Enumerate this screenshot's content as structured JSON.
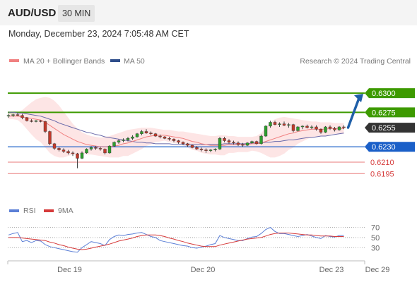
{
  "header": {
    "pair": "AUD/USD",
    "timeframe": "30 MIN"
  },
  "timestamp": "Monday, December 23, 2024 7:05:48 AM CET",
  "legend": {
    "bands_label": "MA 20 + Bollinger Bands",
    "ma50_label": "MA 50",
    "credit": "Research © 2024 Trading Central",
    "rsi_label": "RSI",
    "rsi_ma_label": "9MA"
  },
  "colors": {
    "up_candle": "#2e9e2e",
    "down_candle": "#c0392b",
    "ma20": "#f08080",
    "band_fill": "#fde0e0",
    "ma50": "#6a6aaa",
    "resistance": "#3d9a00",
    "support": "#1a5fc8",
    "pivot": "#e87a7a",
    "last": "#333333",
    "arrow": "#1f5fa8",
    "rsi": "#5b7fd6",
    "rsi_ma": "#d63a3a"
  },
  "chart_data": [
    {
      "type": "candlestick",
      "title": "AUD/USD",
      "timeframe": "30 MIN",
      "ylim": [
        0.6175,
        0.6325
      ],
      "date_ticks": [
        {
          "label": "Dec 19",
          "index": 13
        },
        {
          "label": "Dec 20",
          "index": 42
        },
        {
          "label": "Dec 23",
          "index": 70
        },
        {
          "label": "Dec 29",
          "index": 80
        }
      ],
      "ohlc": [
        [
          0.627,
          0.6273,
          0.6268,
          0.6271
        ],
        [
          0.6271,
          0.6273,
          0.6269,
          0.6272
        ],
        [
          0.6272,
          0.6274,
          0.627,
          0.6271
        ],
        [
          0.6271,
          0.6273,
          0.6266,
          0.6268
        ],
        [
          0.6268,
          0.6269,
          0.6263,
          0.6264
        ],
        [
          0.6264,
          0.6266,
          0.6262,
          0.6263
        ],
        [
          0.6263,
          0.6265,
          0.6262,
          0.6264
        ],
        [
          0.6264,
          0.6265,
          0.6262,
          0.6263
        ],
        [
          0.6263,
          0.6264,
          0.6248,
          0.625
        ],
        [
          0.625,
          0.6251,
          0.6232,
          0.6234
        ],
        [
          0.6234,
          0.6235,
          0.6226,
          0.6228
        ],
        [
          0.6228,
          0.623,
          0.6224,
          0.6226
        ],
        [
          0.6226,
          0.6228,
          0.6222,
          0.6224
        ],
        [
          0.6224,
          0.6226,
          0.622,
          0.6222
        ],
        [
          0.6222,
          0.6224,
          0.6218,
          0.6221
        ],
        [
          0.6221,
          0.6222,
          0.6202,
          0.6215
        ],
        [
          0.6215,
          0.6224,
          0.6214,
          0.6222
        ],
        [
          0.6222,
          0.6228,
          0.6221,
          0.6227
        ],
        [
          0.6227,
          0.6231,
          0.6225,
          0.6229
        ],
        [
          0.6229,
          0.6231,
          0.6226,
          0.6228
        ],
        [
          0.6228,
          0.623,
          0.6225,
          0.6227
        ],
        [
          0.6227,
          0.6228,
          0.622,
          0.6222
        ],
        [
          0.6222,
          0.6232,
          0.6221,
          0.6231
        ],
        [
          0.6231,
          0.6237,
          0.623,
          0.6236
        ],
        [
          0.6236,
          0.624,
          0.6234,
          0.6238
        ],
        [
          0.6238,
          0.6241,
          0.6236,
          0.6239
        ],
        [
          0.6239,
          0.6243,
          0.6237,
          0.6241
        ],
        [
          0.6241,
          0.6245,
          0.6239,
          0.6243
        ],
        [
          0.6243,
          0.6248,
          0.6242,
          0.6247
        ],
        [
          0.6247,
          0.6252,
          0.6245,
          0.625
        ],
        [
          0.625,
          0.6253,
          0.6247,
          0.6248
        ],
        [
          0.6248,
          0.625,
          0.6245,
          0.6247
        ],
        [
          0.6247,
          0.6248,
          0.6243,
          0.6244
        ],
        [
          0.6244,
          0.6246,
          0.6241,
          0.6243
        ],
        [
          0.6243,
          0.6244,
          0.624,
          0.6241
        ],
        [
          0.6241,
          0.6243,
          0.6238,
          0.624
        ],
        [
          0.624,
          0.6241,
          0.6236,
          0.6238
        ],
        [
          0.6238,
          0.6239,
          0.6234,
          0.6236
        ],
        [
          0.6236,
          0.6237,
          0.6232,
          0.6234
        ],
        [
          0.6234,
          0.6235,
          0.623,
          0.6232
        ],
        [
          0.6232,
          0.6233,
          0.6228,
          0.6229
        ],
        [
          0.6229,
          0.6231,
          0.6226,
          0.6227
        ],
        [
          0.6227,
          0.6229,
          0.6224,
          0.6226
        ],
        [
          0.6226,
          0.6228,
          0.6222,
          0.6225
        ],
        [
          0.6225,
          0.6227,
          0.6223,
          0.6226
        ],
        [
          0.6226,
          0.6228,
          0.6224,
          0.6227
        ],
        [
          0.6227,
          0.6243,
          0.6226,
          0.6241
        ],
        [
          0.6241,
          0.6243,
          0.6236,
          0.6238
        ],
        [
          0.6238,
          0.624,
          0.6234,
          0.6236
        ],
        [
          0.6236,
          0.6238,
          0.6233,
          0.6235
        ],
        [
          0.6235,
          0.6237,
          0.6231,
          0.6233
        ],
        [
          0.6233,
          0.6235,
          0.623,
          0.6232
        ],
        [
          0.6232,
          0.6236,
          0.6231,
          0.6235
        ],
        [
          0.6235,
          0.6238,
          0.6234,
          0.6237
        ],
        [
          0.6237,
          0.6238,
          0.6233,
          0.6234
        ],
        [
          0.6234,
          0.6246,
          0.6233,
          0.6244
        ],
        [
          0.6244,
          0.6258,
          0.6243,
          0.6257
        ],
        [
          0.6257,
          0.6264,
          0.6255,
          0.6262
        ],
        [
          0.6262,
          0.6264,
          0.6258,
          0.6259
        ],
        [
          0.6259,
          0.6262,
          0.6256,
          0.626
        ],
        [
          0.626,
          0.6263,
          0.6257,
          0.6258
        ],
        [
          0.6258,
          0.6261,
          0.6255,
          0.6259
        ],
        [
          0.6259,
          0.626,
          0.6249,
          0.6251
        ],
        [
          0.6251,
          0.6257,
          0.625,
          0.6256
        ],
        [
          0.6256,
          0.6258,
          0.6253,
          0.6257
        ],
        [
          0.6257,
          0.6259,
          0.6254,
          0.6255
        ],
        [
          0.6255,
          0.6258,
          0.6253,
          0.6256
        ],
        [
          0.6256,
          0.6258,
          0.6251,
          0.6253
        ],
        [
          0.6253,
          0.6254,
          0.6247,
          0.6249
        ],
        [
          0.6249,
          0.6257,
          0.6248,
          0.6256
        ],
        [
          0.6256,
          0.6258,
          0.6252,
          0.6254
        ],
        [
          0.6254,
          0.6256,
          0.625,
          0.6252
        ],
        [
          0.6252,
          0.6257,
          0.6251,
          0.6256
        ],
        [
          0.6256,
          0.6258,
          0.6253,
          0.6255
        ]
      ],
      "ma20": [
        0.627,
        0.627,
        0.627,
        0.6269,
        0.6268,
        0.6267,
        0.6266,
        0.6265,
        0.6262,
        0.6258,
        0.6254,
        0.625,
        0.6246,
        0.6243,
        0.624,
        0.6237,
        0.6235,
        0.6233,
        0.6232,
        0.6231,
        0.623,
        0.623,
        0.623,
        0.6231,
        0.6232,
        0.6234,
        0.6235,
        0.6237,
        0.6239,
        0.6241,
        0.6243,
        0.6244,
        0.6245,
        0.6245,
        0.6245,
        0.6244,
        0.6243,
        0.6242,
        0.6241,
        0.6239,
        0.6237,
        0.6236,
        0.6234,
        0.6233,
        0.6232,
        0.6232,
        0.6232,
        0.6232,
        0.6233,
        0.6233,
        0.6233,
        0.6233,
        0.6233,
        0.6234,
        0.6234,
        0.6235,
        0.6237,
        0.6239,
        0.6241,
        0.6243,
        0.6245,
        0.6247,
        0.6248,
        0.625,
        0.6251,
        0.6252,
        0.6253,
        0.6253,
        0.6253,
        0.6253,
        0.6254,
        0.6254,
        0.6254,
        0.6254
      ],
      "bb_upper": [
        0.6274,
        0.6274,
        0.6275,
        0.6278,
        0.6283,
        0.6288,
        0.6292,
        0.6294,
        0.6295,
        0.6294,
        0.629,
        0.6284,
        0.6276,
        0.6268,
        0.626,
        0.6254,
        0.6249,
        0.6246,
        0.6244,
        0.6243,
        0.6242,
        0.6243,
        0.6244,
        0.6246,
        0.6248,
        0.625,
        0.6252,
        0.6253,
        0.6254,
        0.6255,
        0.6255,
        0.6255,
        0.6254,
        0.6253,
        0.6252,
        0.6252,
        0.6251,
        0.625,
        0.625,
        0.6249,
        0.6248,
        0.6247,
        0.6246,
        0.6245,
        0.6244,
        0.6244,
        0.6245,
        0.6245,
        0.6244,
        0.6244,
        0.6243,
        0.6243,
        0.6243,
        0.6243,
        0.6244,
        0.6248,
        0.6255,
        0.6262,
        0.6266,
        0.6268,
        0.6269,
        0.6268,
        0.6267,
        0.6266,
        0.6265,
        0.6264,
        0.6263,
        0.6263,
        0.6262,
        0.6262,
        0.6262,
        0.6261,
        0.6261,
        0.6261
      ],
      "bb_lower": [
        0.6266,
        0.6266,
        0.6265,
        0.626,
        0.6253,
        0.6246,
        0.624,
        0.6236,
        0.6229,
        0.6222,
        0.6218,
        0.6216,
        0.6216,
        0.6218,
        0.622,
        0.622,
        0.6221,
        0.622,
        0.622,
        0.6219,
        0.6218,
        0.6217,
        0.6216,
        0.6216,
        0.6216,
        0.6218,
        0.6218,
        0.6221,
        0.6224,
        0.6227,
        0.6231,
        0.6233,
        0.6236,
        0.6237,
        0.6238,
        0.6236,
        0.6235,
        0.6234,
        0.6232,
        0.6229,
        0.6226,
        0.6225,
        0.6222,
        0.6221,
        0.622,
        0.622,
        0.6219,
        0.6219,
        0.6222,
        0.6222,
        0.6223,
        0.6223,
        0.6223,
        0.6225,
        0.6224,
        0.6222,
        0.6219,
        0.6216,
        0.6216,
        0.6218,
        0.6221,
        0.6226,
        0.6229,
        0.6234,
        0.6237,
        0.624,
        0.6243,
        0.6243,
        0.6244,
        0.6244,
        0.6246,
        0.6247,
        0.6247,
        0.6247
      ],
      "ma50": [
        0.6275,
        0.6275,
        0.6274,
        0.6274,
        0.6273,
        0.6272,
        0.6271,
        0.627,
        0.6268,
        0.6266,
        0.6264,
        0.6261,
        0.6259,
        0.6257,
        0.6255,
        0.6253,
        0.6251,
        0.6249,
        0.6248,
        0.6246,
        0.6245,
        0.6243,
        0.6242,
        0.6241,
        0.624,
        0.6239,
        0.6238,
        0.6237,
        0.6236,
        0.6236,
        0.6235,
        0.6235,
        0.6234,
        0.6234,
        0.6234,
        0.6234,
        0.6233,
        0.6233,
        0.6233,
        0.6233,
        0.6233,
        0.6233,
        0.6233,
        0.6233,
        0.6233,
        0.6233,
        0.6233,
        0.6234,
        0.6234,
        0.6234,
        0.6234,
        0.6234,
        0.6234,
        0.6235,
        0.6235,
        0.6235,
        0.6236,
        0.6236,
        0.6237,
        0.6237,
        0.6238,
        0.6239,
        0.6239,
        0.624,
        0.6241,
        0.6242,
        0.6242,
        0.6243,
        0.6244,
        0.6244,
        0.6245,
        0.6246,
        0.6247,
        0.6248
      ],
      "levels": [
        {
          "label": "0.6300",
          "value": 0.63,
          "kind": "resistance"
        },
        {
          "label": "0.6275",
          "value": 0.6275,
          "kind": "resistance"
        },
        {
          "label": "0.6255",
          "value": 0.6255,
          "kind": "last"
        },
        {
          "label": "0.6230",
          "value": 0.623,
          "kind": "support"
        },
        {
          "label": "0.6210",
          "value": 0.621,
          "kind": "pivot"
        },
        {
          "label": "0.6195",
          "value": 0.6195,
          "kind": "pivot"
        }
      ],
      "projection": {
        "from": 0.6255,
        "to": 0.63
      }
    },
    {
      "type": "line",
      "title": "RSI",
      "ylim": [
        15,
        82
      ],
      "yticks": [
        "70",
        "50",
        "30"
      ],
      "series": [
        {
          "name": "RSI",
          "values": [
            55,
            58,
            60,
            42,
            44,
            40,
            44,
            43,
            36,
            32,
            30,
            28,
            26,
            24,
            22,
            21,
            30,
            36,
            42,
            40,
            38,
            34,
            46,
            52,
            55,
            54,
            56,
            57,
            59,
            60,
            56,
            52,
            50,
            44,
            42,
            40,
            38,
            36,
            34,
            33,
            30,
            29,
            31,
            33,
            36,
            38,
            54,
            50,
            48,
            46,
            44,
            44,
            48,
            51,
            52,
            58,
            66,
            70,
            62,
            58,
            58,
            56,
            54,
            52,
            54,
            56,
            53,
            50,
            48,
            54,
            52,
            51,
            54,
            54
          ]
        },
        {
          "name": "9MA",
          "values": [
            50,
            50,
            50,
            49,
            48,
            47,
            46,
            45,
            44,
            41,
            39,
            36,
            34,
            31,
            29,
            27,
            26,
            27,
            29,
            31,
            33,
            35,
            37,
            40,
            43,
            45,
            47,
            49,
            52,
            54,
            55,
            55,
            55,
            54,
            52,
            49,
            47,
            44,
            42,
            39,
            37,
            35,
            33,
            32,
            32,
            32,
            35,
            37,
            39,
            41,
            43,
            45,
            47,
            48,
            49,
            50,
            53,
            56,
            58,
            59,
            59,
            59,
            58,
            57,
            56,
            55,
            55,
            54,
            53,
            53,
            53,
            52,
            52,
            52
          ]
        }
      ]
    }
  ]
}
